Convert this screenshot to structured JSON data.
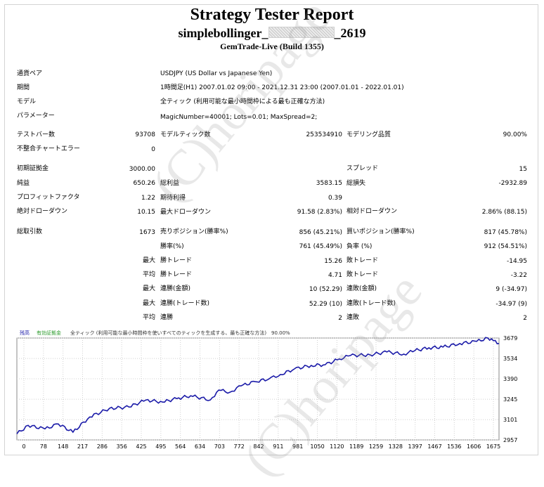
{
  "report": {
    "title": "Strategy Tester Report",
    "ea_prefix": "simplebollinger_",
    "ea_suffix": "_2619",
    "server": "GemTrade-Live (Build 1355)"
  },
  "info": [
    {
      "label": "通貨ペア",
      "value": "USDJPY (US Dollar vs Japanese Yen)"
    },
    {
      "label": "期間",
      "value": "1時間足(H1) 2007.01.02 09:00 - 2021.12.31 23:00 (2007.01.01 - 2022.01.01)"
    },
    {
      "label": "モデル",
      "value": "全ティック (利用可能な最小時間枠による最も正確な方法)"
    },
    {
      "label": "パラメーター",
      "value": "MagicNumber=40001; Lots=0.01; MaxSpread=2;"
    }
  ],
  "stats": {
    "bars_label": "テストバー数",
    "bars": "93708",
    "ticks_label": "モデルティック数",
    "ticks": "253534910",
    "quality_label": "モデリング品質",
    "quality": "90.00%",
    "mismatch_label": "不整合チャートエラー",
    "mismatch": "0",
    "deposit_label": "初期証拠金",
    "deposit": "3000.00",
    "spread_label": "スプレッド",
    "spread": "15",
    "net_label": "純益",
    "net": "650.26",
    "gross_profit_label": "総利益",
    "gross_profit": "3583.15",
    "gross_loss_label": "総損失",
    "gross_loss": "-2932.89",
    "pf_label": "プロフィットファクタ",
    "pf": "1.22",
    "expected_label": "期待利得",
    "expected": "0.39",
    "abs_dd_label": "絶対ドローダウン",
    "abs_dd": "10.15",
    "max_dd_label": "最大ドローダウン",
    "max_dd": "91.58 (2.83%)",
    "rel_dd_label": "相対ドローダウン",
    "rel_dd": "2.86% (88.15)",
    "trades_label": "総取引数",
    "trades": "1673",
    "short_label": "売りポジション(勝率%)",
    "short": "856 (45.21%)",
    "long_label": "買いポジション(勝率%)",
    "long": "817 (45.78%)",
    "win_rate_label": "勝率(%)",
    "win_rate": "761 (45.49%)",
    "loss_rate_label": "負率 (%)",
    "loss_rate": "912 (54.51%)",
    "max_prefix": "最大",
    "avg_prefix": "平均",
    "max_win_label": "勝トレード",
    "max_win": "15.26",
    "max_loss_label": "敗トレード",
    "max_loss": "-14.95",
    "avg_win_label": "勝トレード",
    "avg_win": "4.71",
    "avg_loss_label": "敗トレード",
    "avg_loss": "-3.22",
    "cons_win_amt_label": "連勝(金額)",
    "cons_win_amt": "10 (52.29)",
    "cons_loss_amt_label": "連敗(金額)",
    "cons_loss_amt": "9 (-34.97)",
    "cons_win_cnt_label": "連勝(トレード数)",
    "cons_win_cnt": "52.29 (10)",
    "cons_loss_cnt_label": "連敗(トレード数)",
    "cons_loss_cnt": "-34.97 (9)",
    "avg_cons_win_label": "連勝",
    "avg_cons_win": "2",
    "avg_cons_loss_label": "連敗",
    "avg_cons_loss": "2"
  },
  "watermark": "(C)horipage",
  "chart_data": {
    "type": "line",
    "legend": {
      "balance": "残高",
      "equity": "有効証拠金",
      "model": "全ティック (利用可能な最小時間枠を使いすべてのティックを生成する、最も正確な方法)",
      "quality": "90.00%"
    },
    "x_ticks": [
      "0",
      "78",
      "148",
      "217",
      "286",
      "356",
      "425",
      "495",
      "564",
      "634",
      "703",
      "772",
      "842",
      "911",
      "981",
      "1050",
      "1120",
      "1189",
      "1259",
      "1328",
      "1397",
      "1467",
      "1536",
      "1606",
      "1675"
    ],
    "y_ticks": [
      "3679",
      "3534",
      "3390",
      "3245",
      "3101",
      "2957"
    ],
    "ylim": [
      2957,
      3679
    ],
    "xlim": [
      0,
      1720
    ],
    "series": [
      {
        "color": "#1a1aa8",
        "x": [
          0,
          40,
          100,
          148,
          200,
          260,
          330,
          400,
          460,
          520,
          570,
          620,
          690,
          720,
          760,
          800,
          850,
          900,
          940,
          990,
          1050,
          1100,
          1150,
          1190,
          1260,
          1320,
          1380,
          1420,
          1470,
          1520,
          1580,
          1640,
          1680,
          1700,
          1720
        ],
        "y": [
          3000,
          3060,
          3035,
          3070,
          3012,
          3120,
          3180,
          3190,
          3240,
          3225,
          3250,
          3270,
          3240,
          3310,
          3295,
          3340,
          3370,
          3390,
          3420,
          3460,
          3485,
          3490,
          3530,
          3555,
          3560,
          3580,
          3565,
          3590,
          3610,
          3615,
          3640,
          3655,
          3679,
          3660,
          3640
        ]
      }
    ]
  },
  "colors": {
    "line": "#1a1aa8",
    "grid": "#d0d0d0",
    "legend_balance": "#1a1aa8",
    "legend_equity": "#2a9a2a"
  }
}
